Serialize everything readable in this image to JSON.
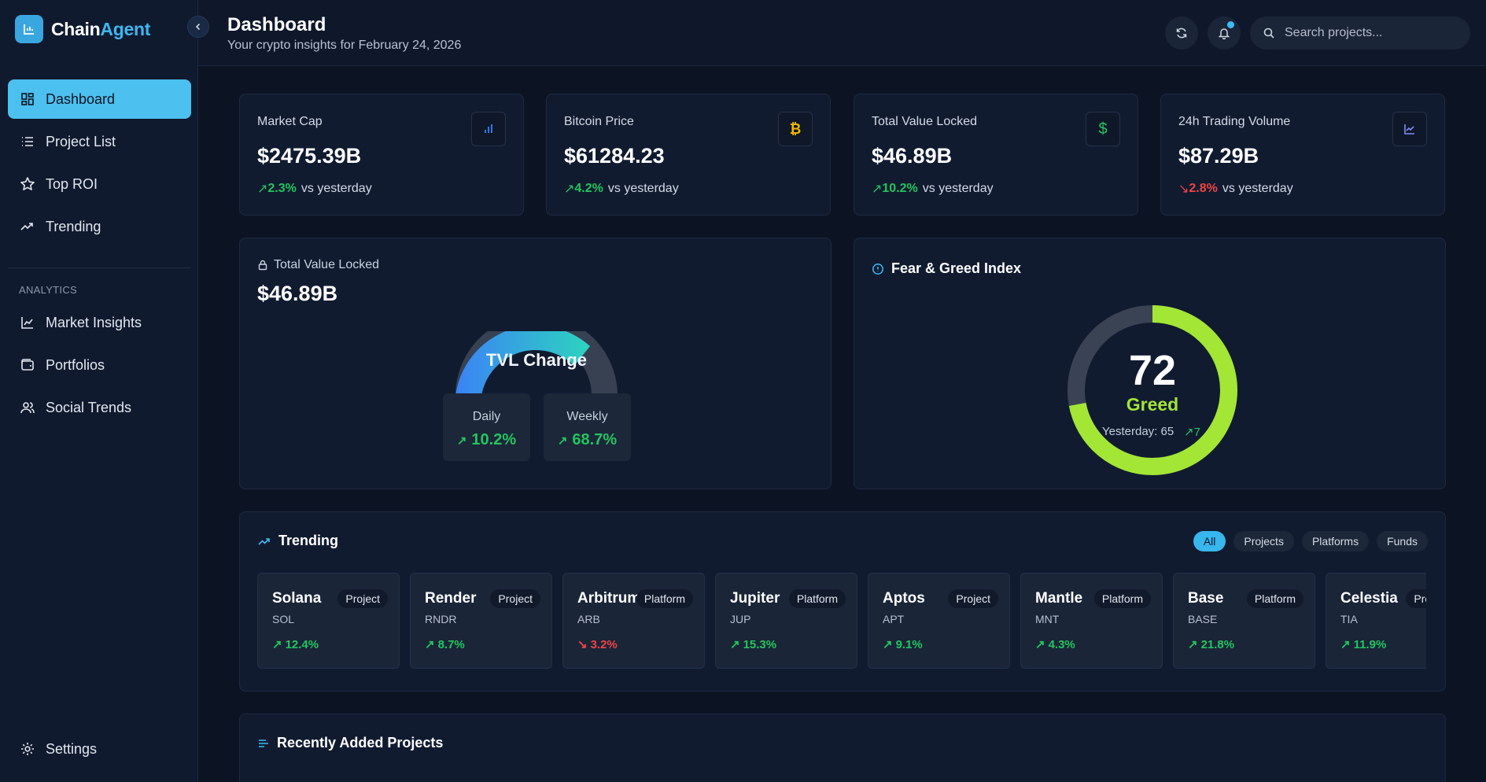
{
  "brand": {
    "name_main": "Chain",
    "name_accent": "Agent"
  },
  "sidebar": {
    "items": [
      {
        "label": "Dashboard",
        "icon": "dashboard-grid-icon",
        "active": true
      },
      {
        "label": "Project List",
        "icon": "list-icon"
      },
      {
        "label": "Top ROI",
        "icon": "star-icon"
      },
      {
        "label": "Trending",
        "icon": "trending-up-icon"
      }
    ],
    "section_label": "ANALYTICS",
    "analytics_items": [
      {
        "label": "Market Insights",
        "icon": "line-chart-icon"
      },
      {
        "label": "Portfolios",
        "icon": "wallet-icon"
      },
      {
        "label": "Social Trends",
        "icon": "users-icon"
      }
    ],
    "settings_label": "Settings"
  },
  "header": {
    "title": "Dashboard",
    "subtitle": "Your crypto insights for February 24, 2026",
    "search_placeholder": "Search projects..."
  },
  "stats": [
    {
      "label": "Market Cap",
      "value": "$2475.39B",
      "change": "2.3%",
      "direction": "up",
      "suffix": "vs yesterday",
      "icon": "bar-chart-icon",
      "icon_color": "#3b82f6"
    },
    {
      "label": "Bitcoin Price",
      "value": "$61284.23",
      "change": "4.2%",
      "direction": "up",
      "suffix": "vs yesterday",
      "icon": "bitcoin-icon",
      "icon_color": "#f5b800"
    },
    {
      "label": "Total Value Locked",
      "value": "$46.89B",
      "change": "10.2%",
      "direction": "up",
      "suffix": "vs yesterday",
      "icon": "dollar-icon",
      "icon_color": "#22c55e"
    },
    {
      "label": "24h Trading Volume",
      "value": "$87.29B",
      "change": "2.8%",
      "direction": "down",
      "suffix": "vs yesterday",
      "icon": "line-chart-icon",
      "icon_color": "#818cf8"
    }
  ],
  "tvl": {
    "label": "Total Value Locked",
    "value": "$46.89B",
    "gauge_title": "TVL Change",
    "daily_label": "Daily",
    "daily_value": "10.2%",
    "weekly_label": "Weekly",
    "weekly_value": "68.7%"
  },
  "fear_greed": {
    "title": "Fear & Greed Index",
    "value": "72",
    "score": 72,
    "label": "Greed",
    "yesterday": "Yesterday: 65",
    "delta": "7",
    "color": "#a3e635"
  },
  "trending": {
    "title": "Trending",
    "filters": [
      "All",
      "Projects",
      "Platforms",
      "Funds"
    ],
    "items": [
      {
        "name": "Solana",
        "symbol": "SOL",
        "type": "Project",
        "change": "12.4%",
        "direction": "up"
      },
      {
        "name": "Render",
        "symbol": "RNDR",
        "type": "Project",
        "change": "8.7%",
        "direction": "up"
      },
      {
        "name": "Arbitrum",
        "symbol": "ARB",
        "type": "Platform",
        "change": "3.2%",
        "direction": "down"
      },
      {
        "name": "Jupiter",
        "symbol": "JUP",
        "type": "Platform",
        "change": "15.3%",
        "direction": "up"
      },
      {
        "name": "Aptos",
        "symbol": "APT",
        "type": "Project",
        "change": "9.1%",
        "direction": "up"
      },
      {
        "name": "Mantle",
        "symbol": "MNT",
        "type": "Platform",
        "change": "4.3%",
        "direction": "up"
      },
      {
        "name": "Base",
        "symbol": "BASE",
        "type": "Platform",
        "change": "21.8%",
        "direction": "up"
      },
      {
        "name": "Celestia",
        "symbol": "TIA",
        "type": "Project",
        "change": "11.9%",
        "direction": "up"
      }
    ]
  },
  "recent": {
    "title": "Recently Added Projects"
  }
}
